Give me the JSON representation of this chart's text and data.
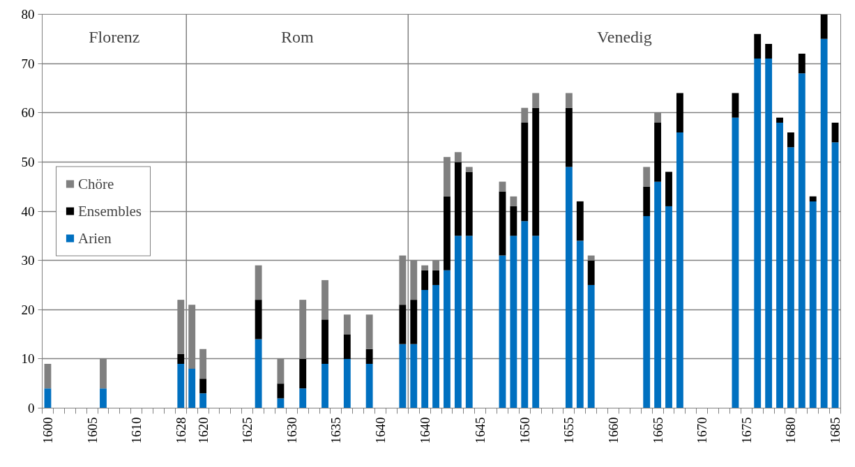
{
  "chart_data": {
    "type": "bar",
    "stacked": true,
    "categories": [
      "1600",
      null,
      null,
      null,
      "1605",
      null,
      null,
      null,
      "1610",
      null,
      null,
      null,
      "1628",
      null,
      "1620",
      null,
      null,
      null,
      "1625",
      null,
      null,
      null,
      "1630",
      null,
      null,
      null,
      "1635",
      null,
      null,
      null,
      "1640",
      null,
      null,
      null,
      "1640",
      null,
      null,
      null,
      null,
      "1645",
      null,
      null,
      null,
      "1650",
      null,
      null,
      null,
      "1655",
      null,
      null,
      null,
      "1660",
      null,
      null,
      null,
      "1665",
      null,
      null,
      null,
      "1670",
      null,
      null,
      null,
      "1675",
      null,
      null,
      null,
      "1680",
      null,
      null,
      null,
      "1685"
    ],
    "ylim": [
      0,
      80
    ],
    "yticks": [
      0,
      10,
      20,
      30,
      40,
      50,
      60,
      70,
      80
    ],
    "grid": "y",
    "legend": "left",
    "series": [
      {
        "name": "Arien",
        "color": "#0070c0",
        "values": [
          4,
          null,
          null,
          null,
          null,
          4,
          null,
          null,
          null,
          null,
          null,
          null,
          9,
          8,
          3,
          null,
          null,
          null,
          null,
          14,
          null,
          2,
          null,
          4,
          null,
          9,
          null,
          10,
          null,
          9,
          null,
          null,
          13,
          13,
          24,
          25,
          28,
          35,
          35,
          null,
          null,
          31,
          35,
          38,
          35,
          null,
          null,
          49,
          34,
          25,
          null,
          null,
          null,
          null,
          39,
          46,
          41,
          56,
          null,
          null,
          null,
          null,
          59,
          null,
          71,
          71,
          58,
          53,
          68,
          42,
          75,
          54
        ]
      },
      {
        "name": "Ensembles",
        "color": "#000000",
        "values": [
          0,
          null,
          null,
          null,
          null,
          0,
          null,
          null,
          null,
          null,
          null,
          null,
          2,
          0,
          3,
          null,
          null,
          null,
          null,
          8,
          null,
          3,
          null,
          6,
          null,
          9,
          null,
          5,
          null,
          3,
          null,
          null,
          8,
          9,
          4,
          3,
          15,
          15,
          13,
          null,
          null,
          13,
          6,
          20,
          26,
          null,
          null,
          12,
          8,
          5,
          null,
          null,
          null,
          null,
          6,
          12,
          7,
          8,
          null,
          null,
          null,
          null,
          5,
          null,
          5,
          3,
          1,
          3,
          4,
          1,
          5,
          4
        ]
      },
      {
        "name": "Chöre",
        "color": "#808080",
        "values": [
          5,
          null,
          null,
          null,
          null,
          6,
          null,
          null,
          null,
          null,
          null,
          null,
          11,
          13,
          6,
          null,
          null,
          null,
          null,
          7,
          null,
          5,
          null,
          12,
          null,
          8,
          null,
          4,
          null,
          7,
          null,
          null,
          10,
          8,
          1,
          2,
          8,
          2,
          1,
          null,
          null,
          2,
          2,
          3,
          3,
          null,
          null,
          3,
          0,
          1,
          null,
          null,
          null,
          null,
          4,
          2,
          0,
          0,
          null,
          null,
          null,
          null,
          0,
          null,
          0,
          0,
          0,
          0,
          0,
          0,
          0,
          0
        ]
      }
    ],
    "annotations": [
      "Florenz",
      "Rom",
      "Venedig"
    ]
  }
}
